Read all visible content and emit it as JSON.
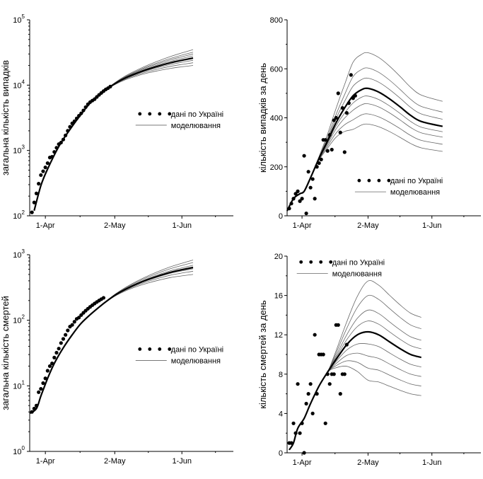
{
  "chart_data": [
    {
      "id": "p1",
      "type": "line",
      "scale": "log",
      "ylabel": "загальна кількість випадків",
      "ylim": [
        100,
        100000
      ],
      "yticks": [
        {
          "v": 100,
          "base": "10",
          "exp": "2"
        },
        {
          "v": 1000,
          "base": "10",
          "exp": "3"
        },
        {
          "v": 10000,
          "base": "10",
          "exp": "4"
        },
        {
          "v": 100000,
          "base": "10",
          "exp": "5"
        }
      ],
      "xlim": [
        -3,
        88
      ],
      "xticks": [
        {
          "v": 4,
          "label": "1-Apr"
        },
        {
          "v": 35,
          "label": "2-May"
        },
        {
          "v": 65,
          "label": "1-Jun"
        }
      ],
      "legend": {
        "data": "дані по Україні",
        "sim": "моделювання",
        "position": "middle-right"
      },
      "scatter": [
        [
          -2,
          113
        ],
        [
          -1,
          160
        ],
        [
          0,
          220
        ],
        [
          1,
          310
        ],
        [
          2,
          420
        ],
        [
          3,
          480
        ],
        [
          4,
          550
        ],
        [
          5,
          640
        ],
        [
          6,
          780
        ],
        [
          7,
          800
        ],
        [
          8,
          950
        ],
        [
          9,
          1100
        ],
        [
          10,
          1250
        ],
        [
          11,
          1320
        ],
        [
          12,
          1470
        ],
        [
          13,
          1700
        ],
        [
          14,
          2000
        ],
        [
          15,
          2300
        ],
        [
          16,
          2600
        ],
        [
          17,
          2800
        ],
        [
          18,
          3100
        ],
        [
          19,
          3400
        ],
        [
          20,
          3700
        ],
        [
          21,
          4100
        ],
        [
          22,
          4600
        ],
        [
          23,
          5100
        ],
        [
          24,
          5500
        ],
        [
          25,
          5800
        ],
        [
          26,
          6100
        ],
        [
          27,
          6600
        ],
        [
          28,
          7100
        ],
        [
          29,
          7600
        ],
        [
          30,
          8100
        ],
        [
          31,
          8600
        ],
        [
          32,
          9000
        ],
        [
          33,
          9500
        ]
      ],
      "main_curve": [
        [
          -1,
          120
        ],
        [
          2,
          290
        ],
        [
          5,
          520
        ],
        [
          10,
          1150
        ],
        [
          15,
          2100
        ],
        [
          20,
          3600
        ],
        [
          25,
          5800
        ],
        [
          30,
          8000
        ],
        [
          35,
          10500
        ],
        [
          40,
          13000
        ],
        [
          45,
          15300
        ],
        [
          50,
          17600
        ],
        [
          55,
          19800
        ],
        [
          60,
          22000
        ],
        [
          65,
          24000
        ],
        [
          70,
          26000
        ]
      ],
      "sim_end_values": [
        20000,
        22000,
        24000,
        28000,
        30000,
        32000,
        35000
      ]
    },
    {
      "id": "p2",
      "type": "line",
      "scale": "linear",
      "ylabel": "кількість випадків за день",
      "ylim": [
        0,
        800
      ],
      "yticks": [
        {
          "v": 0,
          "label": "0"
        },
        {
          "v": 200,
          "label": "200"
        },
        {
          "v": 400,
          "label": "400"
        },
        {
          "v": 600,
          "label": "600"
        },
        {
          "v": 800,
          "label": "800"
        }
      ],
      "xlim": [
        -3,
        88
      ],
      "xticks": [
        {
          "v": 4,
          "label": "1-Apr"
        },
        {
          "v": 35,
          "label": "2-May"
        },
        {
          "v": 65,
          "label": "1-Jun"
        }
      ],
      "legend": {
        "data": "дані по Україні",
        "sim": "моделювання",
        "position": "lower-right"
      },
      "scatter": [
        [
          -2,
          30
        ],
        [
          -1,
          50
        ],
        [
          0,
          70
        ],
        [
          1,
          90
        ],
        [
          2,
          100
        ],
        [
          3,
          60
        ],
        [
          4,
          70
        ],
        [
          5,
          245
        ],
        [
          6,
          10
        ],
        [
          7,
          180
        ],
        [
          8,
          115
        ],
        [
          9,
          150
        ],
        [
          10,
          70
        ],
        [
          11,
          200
        ],
        [
          12,
          215
        ],
        [
          13,
          230
        ],
        [
          14,
          310
        ],
        [
          15,
          310
        ],
        [
          16,
          265
        ],
        [
          17,
          330
        ],
        [
          18,
          270
        ],
        [
          19,
          390
        ],
        [
          20,
          400
        ],
        [
          21,
          500
        ],
        [
          22,
          340
        ],
        [
          23,
          440
        ],
        [
          24,
          260
        ],
        [
          25,
          420
        ],
        [
          26,
          460
        ],
        [
          27,
          575
        ],
        [
          28,
          480
        ],
        [
          29,
          490
        ]
      ],
      "main_curve": [
        [
          -3,
          20
        ],
        [
          0,
          70
        ],
        [
          3,
          90
        ],
        [
          5,
          100
        ],
        [
          8,
          155
        ],
        [
          12,
          235
        ],
        [
          16,
          305
        ],
        [
          20,
          380
        ],
        [
          24,
          440
        ],
        [
          28,
          490
        ],
        [
          32,
          515
        ],
        [
          35,
          520
        ],
        [
          40,
          505
        ],
        [
          45,
          478
        ],
        [
          50,
          445
        ],
        [
          55,
          410
        ],
        [
          60,
          385
        ],
        [
          70,
          365
        ]
      ],
      "sim_scales": [
        0.72,
        0.8,
        0.88,
        0.94,
        1.0,
        1.08,
        1.16,
        1.28
      ]
    },
    {
      "id": "p3",
      "type": "line",
      "scale": "log",
      "ylabel": "загальна кількість смертей",
      "ylim": [
        1,
        1000
      ],
      "yticks": [
        {
          "v": 1,
          "base": "10",
          "exp": "0"
        },
        {
          "v": 10,
          "base": "10",
          "exp": "1"
        },
        {
          "v": 100,
          "base": "10",
          "exp": "2"
        },
        {
          "v": 1000,
          "base": "10",
          "exp": "3"
        }
      ],
      "xlim": [
        -3,
        88
      ],
      "xticks": [
        {
          "v": 4,
          "label": "1-Apr"
        },
        {
          "v": 35,
          "label": "2-May"
        },
        {
          "v": 65,
          "label": "1-Jun"
        }
      ],
      "legend": {
        "data": "дані по Україні",
        "sim": "моделювання",
        "position": "middle-right"
      },
      "scatter": [
        [
          -2,
          4
        ],
        [
          -1,
          4.5
        ],
        [
          0,
          5
        ],
        [
          1,
          8
        ],
        [
          2,
          9
        ],
        [
          3,
          11
        ],
        [
          4,
          13
        ],
        [
          5,
          17
        ],
        [
          6,
          20
        ],
        [
          7,
          22
        ],
        [
          8,
          27
        ],
        [
          9,
          32
        ],
        [
          10,
          37
        ],
        [
          11,
          45
        ],
        [
          12,
          52
        ],
        [
          13,
          60
        ],
        [
          14,
          70
        ],
        [
          15,
          80
        ],
        [
          16,
          85
        ],
        [
          17,
          95
        ],
        [
          18,
          105
        ],
        [
          19,
          110
        ],
        [
          20,
          120
        ],
        [
          21,
          130
        ],
        [
          22,
          140
        ],
        [
          23,
          150
        ],
        [
          24,
          160
        ],
        [
          25,
          170
        ],
        [
          26,
          180
        ],
        [
          27,
          190
        ],
        [
          28,
          200
        ],
        [
          29,
          210
        ],
        [
          30,
          220
        ]
      ],
      "main_curve": [
        [
          -3,
          3.8
        ],
        [
          0,
          4.5
        ],
        [
          2,
          7
        ],
        [
          5,
          13
        ],
        [
          8,
          22
        ],
        [
          12,
          38
        ],
        [
          16,
          60
        ],
        [
          20,
          90
        ],
        [
          25,
          130
        ],
        [
          30,
          180
        ],
        [
          35,
          240
        ],
        [
          40,
          300
        ],
        [
          45,
          360
        ],
        [
          50,
          420
        ],
        [
          55,
          480
        ],
        [
          60,
          540
        ],
        [
          65,
          590
        ],
        [
          70,
          640
        ]
      ],
      "sim_end_values": [
        500,
        560,
        610,
        690,
        760,
        830
      ]
    },
    {
      "id": "p4",
      "type": "line",
      "scale": "linear",
      "ylabel": "кількість смертей за день",
      "ylim": [
        0,
        20
      ],
      "yticks": [
        {
          "v": 0,
          "label": "0"
        },
        {
          "v": 4,
          "label": "4"
        },
        {
          "v": 8,
          "label": "8"
        },
        {
          "v": 12,
          "label": "12"
        },
        {
          "v": 16,
          "label": "16"
        },
        {
          "v": 20,
          "label": "20"
        }
      ],
      "xlim": [
        -3,
        88
      ],
      "xticks": [
        {
          "v": 4,
          "label": "1-Apr"
        },
        {
          "v": 35,
          "label": "2-May"
        },
        {
          "v": 65,
          "label": "1-Jun"
        }
      ],
      "legend": {
        "data": "дані по Україні",
        "sim": "моделювання",
        "position": "upper-left"
      },
      "scatter": [
        [
          -2,
          1
        ],
        [
          -1,
          1
        ],
        [
          0,
          3
        ],
        [
          1,
          2
        ],
        [
          2,
          7
        ],
        [
          3,
          2
        ],
        [
          4,
          3
        ],
        [
          5,
          0
        ],
        [
          6,
          5
        ],
        [
          7,
          6
        ],
        [
          8,
          7
        ],
        [
          9,
          4
        ],
        [
          10,
          12
        ],
        [
          11,
          6
        ],
        [
          12,
          10
        ],
        [
          13,
          10
        ],
        [
          14,
          10
        ],
        [
          15,
          3
        ],
        [
          16,
          8
        ],
        [
          17,
          7
        ],
        [
          18,
          8
        ],
        [
          19,
          8
        ],
        [
          20,
          13
        ],
        [
          21,
          13
        ],
        [
          22,
          6
        ],
        [
          23,
          8
        ],
        [
          24,
          8
        ],
        [
          25,
          11
        ]
      ],
      "main_curve": [
        [
          -2,
          0.3
        ],
        [
          0,
          1
        ],
        [
          2,
          2.5
        ],
        [
          5,
          3.5
        ],
        [
          8,
          5
        ],
        [
          12,
          6.8
        ],
        [
          16,
          8.2
        ],
        [
          20,
          9.5
        ],
        [
          25,
          11
        ],
        [
          30,
          12
        ],
        [
          35,
          12.3
        ],
        [
          40,
          12
        ],
        [
          45,
          11.3
        ],
        [
          50,
          10.6
        ],
        [
          55,
          10
        ],
        [
          60,
          9.7
        ]
      ],
      "sim_scales": [
        0.6,
        0.7,
        0.8,
        0.9,
        1.0,
        1.09,
        1.18,
        1.3,
        1.42
      ]
    }
  ]
}
